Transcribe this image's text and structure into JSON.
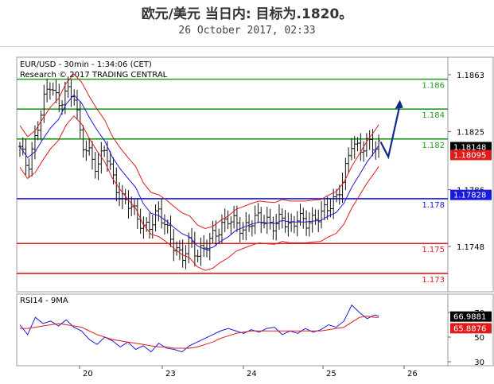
{
  "header": {
    "title": "欧元/美元 当日内: 目标为.1820。",
    "date": "26 October 2017, 02:33"
  },
  "chart_data": [
    {
      "type": "candlestick",
      "info_line_1": "EUR/USD - 30min - 1:34:06 (CET)",
      "info_line_2": "Research © 2017 TRADING CENTRAL",
      "y_ticks": [
        "1.1863",
        "1.1825",
        "1.1786",
        "1.1748"
      ],
      "x_ticks": [
        "20",
        "23",
        "24",
        "25",
        "26"
      ],
      "levels": [
        {
          "label": "1.186",
          "value": 1.186,
          "color": "#1e9e1e"
        },
        {
          "label": "1.184",
          "value": 1.184,
          "color": "#1e9e1e"
        },
        {
          "label": "1.182",
          "value": 1.182,
          "color": "#1e9e1e"
        },
        {
          "label": "1.178",
          "value": 1.178,
          "color": "#1a1adb"
        },
        {
          "label": "1.175",
          "value": 1.175,
          "color": "#dd1c1c"
        },
        {
          "label": "1.173",
          "value": 1.173,
          "color": "#dd1c1c"
        }
      ],
      "price_badges": [
        {
          "text": "1.18148",
          "value": 1.18148,
          "color": "#000000"
        },
        {
          "text": "1.18095",
          "value": 1.18095,
          "color": "#dd1c1c"
        },
        {
          "text": "1.17828",
          "value": 1.17828,
          "color": "#1a1adb"
        }
      ],
      "projection": {
        "x": [
          0.935,
          0.955,
          0.985
        ],
        "y": [
          1.1818,
          1.1808,
          1.1843
        ]
      },
      "close_path": {
        "x": [
          0.0,
          0.02,
          0.04,
          0.06,
          0.08,
          0.1,
          0.12,
          0.14,
          0.16,
          0.18,
          0.2,
          0.22,
          0.24,
          0.26,
          0.28,
          0.3,
          0.32,
          0.34,
          0.36,
          0.38,
          0.4,
          0.42,
          0.44,
          0.46,
          0.48,
          0.5,
          0.52,
          0.54,
          0.56,
          0.58,
          0.6,
          0.62,
          0.64,
          0.66,
          0.68,
          0.7,
          0.72,
          0.74,
          0.76,
          0.78,
          0.8,
          0.82,
          0.84,
          0.86,
          0.88,
          0.9,
          0.92,
          0.93
        ],
        "y": [
          1.1815,
          1.18,
          1.182,
          1.1845,
          1.1858,
          1.1842,
          1.1852,
          1.185,
          1.1818,
          1.181,
          1.18,
          1.1815,
          1.1795,
          1.178,
          1.1778,
          1.177,
          1.176,
          1.1763,
          1.1772,
          1.176,
          1.1748,
          1.174,
          1.1752,
          1.1742,
          1.1748,
          1.1755,
          1.176,
          1.1767,
          1.1764,
          1.1758,
          1.1765,
          1.1768,
          1.1764,
          1.1762,
          1.1768,
          1.176,
          1.1768,
          1.1764,
          1.1765,
          1.177,
          1.1775,
          1.178,
          1.1795,
          1.1818,
          1.1812,
          1.1818,
          1.1815,
          1.1815
        ]
      }
    },
    {
      "type": "line",
      "label": "RSI14 - 9MA",
      "y_ticks": [
        "70",
        "50",
        "30"
      ],
      "badges": [
        {
          "text": "66.9881",
          "value": 66.9881,
          "color": "#000000"
        },
        {
          "text": "65.8876",
          "value": 65.8876,
          "color": "#dd1c1c"
        }
      ],
      "series": [
        {
          "values": [
            60,
            52,
            66,
            61,
            63,
            59,
            64,
            58,
            55,
            48,
            44,
            50,
            47,
            42,
            46,
            40,
            43,
            38,
            45,
            41,
            40,
            38,
            43,
            46,
            49,
            52,
            55,
            57,
            55,
            53,
            56,
            54,
            57,
            58,
            52,
            55,
            53,
            57,
            54,
            56,
            60,
            58,
            63,
            76,
            70,
            65,
            68,
            67
          ],
          "color": "#1a1adb"
        },
        {
          "values": [
            57,
            57,
            58,
            59,
            60,
            61,
            60,
            59,
            58,
            55,
            52,
            50,
            48,
            47,
            46,
            45,
            44,
            43,
            42,
            42,
            41,
            41,
            41,
            42,
            44,
            46,
            49,
            51,
            53,
            54,
            55,
            55,
            55,
            55,
            55,
            55,
            55,
            55,
            55,
            55,
            56,
            57,
            58,
            62,
            66,
            67,
            66,
            66
          ],
          "color": "#dd1c1c"
        }
      ]
    }
  ]
}
